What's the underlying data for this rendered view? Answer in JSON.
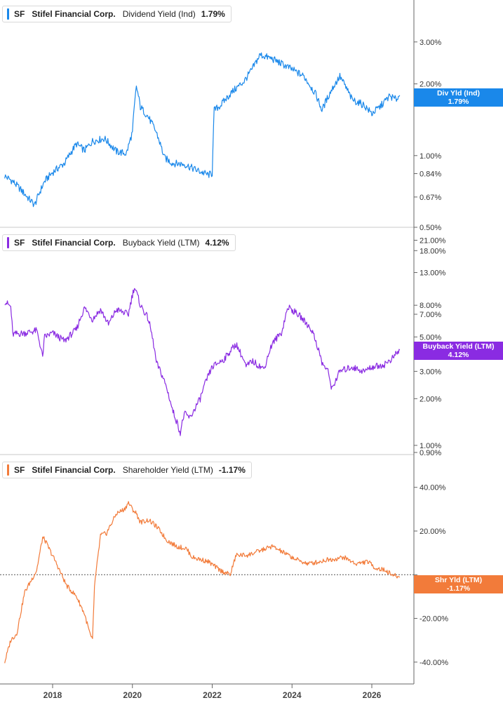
{
  "colors": {
    "dividend": "#1a88ea",
    "buyback": "#8a2be2",
    "shareholder": "#f27b3a",
    "axis": "#666666",
    "grid": "#c8c8c8"
  },
  "x_axis": {
    "ticks": [
      "2018",
      "2020",
      "2022",
      "2024",
      "2026"
    ]
  },
  "chart_data": [
    {
      "type": "line",
      "legend": {
        "ticker": "SF",
        "company": "Stifel Financial Corp.",
        "metric": "Dividend Yield (Ind)",
        "value": "1.79%"
      },
      "flag": {
        "label": "Div Yld (Ind)",
        "value": "1.79%"
      },
      "y_scale": "log",
      "ylim": [
        0.5,
        4.5
      ],
      "ytick_values": [
        3.0,
        2.0,
        1.0,
        0.84,
        0.67,
        0.5
      ],
      "ytick_labels": [
        "3.00%",
        "2.00%",
        "1.00%",
        "0.84%",
        "0.67%",
        "0.50%"
      ],
      "x": [
        2016.8,
        2017.0,
        2017.2,
        2017.4,
        2017.55,
        2017.8,
        2018.0,
        2018.3,
        2018.6,
        2018.8,
        2019.0,
        2019.3,
        2019.6,
        2019.85,
        2020.0,
        2020.1,
        2020.2,
        2020.4,
        2020.6,
        2020.8,
        2021.0,
        2021.3,
        2021.6,
        2021.9,
        2022.0,
        2022.05,
        2022.2,
        2022.5,
        2022.8,
        2023.0,
        2023.2,
        2023.5,
        2023.8,
        2024.0,
        2024.3,
        2024.6,
        2024.75,
        2025.0,
        2025.2,
        2025.5,
        2025.8,
        2026.0,
        2026.2,
        2026.45,
        2026.6,
        2026.7
      ],
      "series": [
        {
          "values": [
            0.82,
            0.78,
            0.72,
            0.66,
            0.62,
            0.78,
            0.85,
            0.93,
            1.12,
            1.05,
            1.15,
            1.18,
            1.04,
            1.02,
            1.25,
            1.95,
            1.6,
            1.45,
            1.25,
            0.98,
            0.93,
            0.92,
            0.87,
            0.83,
            0.84,
            1.55,
            1.62,
            1.85,
            2.05,
            2.3,
            2.65,
            2.55,
            2.4,
            2.3,
            2.15,
            1.8,
            1.55,
            1.9,
            2.15,
            1.72,
            1.63,
            1.5,
            1.6,
            1.78,
            1.72,
            1.79
          ]
        }
      ]
    },
    {
      "type": "line",
      "legend": {
        "ticker": "SF",
        "company": "Stifel Financial Corp.",
        "metric": "Buyback Yield (LTM)",
        "value": "4.12%"
      },
      "flag": {
        "label": "Buyback Yield (LTM)",
        "value": "4.12%"
      },
      "y_scale": "log",
      "ylim": [
        0.9,
        22.0
      ],
      "ytick_values": [
        21.0,
        18.0,
        13.0,
        8.0,
        7.0,
        5.0,
        3.0,
        2.0,
        1.0,
        0.9
      ],
      "ytick_labels": [
        "21.00%",
        "18.00%",
        "13.00%",
        "8.00%",
        "7.00%",
        "5.00%",
        "3.00%",
        "2.00%",
        "1.00%",
        "0.90%"
      ],
      "x": [
        2016.8,
        2016.95,
        2017.0,
        2017.3,
        2017.6,
        2017.75,
        2017.8,
        2018.0,
        2018.3,
        2018.6,
        2018.8,
        2019.0,
        2019.2,
        2019.4,
        2019.6,
        2019.9,
        2020.05,
        2020.2,
        2020.4,
        2020.6,
        2020.8,
        2021.0,
        2021.2,
        2021.3,
        2021.45,
        2021.7,
        2022.0,
        2022.3,
        2022.6,
        2022.85,
        2023.0,
        2023.3,
        2023.5,
        2023.75,
        2023.9,
        2024.2,
        2024.5,
        2024.75,
        2024.9,
        2025.0,
        2025.2,
        2025.5,
        2025.8,
        2026.0,
        2026.3,
        2026.5,
        2026.7
      ],
      "series": [
        {
          "values": [
            8.5,
            7.8,
            5.2,
            5.3,
            5.5,
            3.7,
            5.0,
            5.3,
            4.7,
            5.6,
            7.7,
            6.5,
            7.5,
            6.0,
            7.5,
            7.0,
            10.5,
            8.0,
            6.5,
            3.4,
            2.6,
            1.7,
            1.2,
            1.6,
            1.5,
            2.0,
            3.2,
            3.6,
            4.5,
            3.2,
            3.5,
            3.1,
            4.5,
            5.4,
            7.8,
            6.8,
            5.5,
            3.4,
            3.0,
            2.3,
            3.0,
            3.2,
            3.0,
            3.2,
            3.3,
            3.6,
            4.12
          ]
        }
      ]
    },
    {
      "type": "line",
      "legend": {
        "ticker": "SF",
        "company": "Stifel Financial Corp.",
        "metric": "Shareholder Yield (LTM)",
        "value": "-1.17%"
      },
      "flag": {
        "label": "Shr Yld (LTM)",
        "value": "-1.17%"
      },
      "y_scale": "linear",
      "ylim": [
        -50,
        55
      ],
      "ytick_values": [
        40,
        20,
        0,
        -20,
        -40
      ],
      "ytick_labels": [
        "40.00%",
        "20.00%",
        "",
        "-20.00%",
        "-40.00%"
      ],
      "zero_line": true,
      "x": [
        2016.8,
        2016.95,
        2017.1,
        2017.3,
        2017.6,
        2017.75,
        2017.8,
        2018.1,
        2018.35,
        2018.6,
        2018.8,
        2018.95,
        2019.0,
        2019.05,
        2019.2,
        2019.35,
        2019.6,
        2019.8,
        2019.9,
        2020.0,
        2020.1,
        2020.2,
        2020.4,
        2020.55,
        2020.7,
        2020.85,
        2021.1,
        2021.35,
        2021.5,
        2021.9,
        2022.2,
        2022.45,
        2022.6,
        2022.9,
        2023.2,
        2023.5,
        2023.8,
        2024.1,
        2024.4,
        2024.7,
        2024.9,
        2025.0,
        2025.3,
        2025.6,
        2025.9,
        2026.1,
        2026.35,
        2026.5,
        2026.7
      ],
      "series": [
        {
          "values": [
            -40,
            -30,
            -27,
            -8,
            2,
            17,
            16,
            5,
            -5,
            -10,
            -18,
            -28,
            -30,
            -5,
            18,
            19,
            28,
            30,
            33,
            30,
            28,
            24,
            25,
            23,
            20,
            16,
            13,
            12,
            8,
            6,
            2,
            0,
            9,
            9,
            11,
            13,
            10,
            7,
            5,
            6,
            7,
            7,
            8,
            5,
            6,
            3,
            2,
            0,
            -1.17
          ]
        }
      ]
    }
  ]
}
